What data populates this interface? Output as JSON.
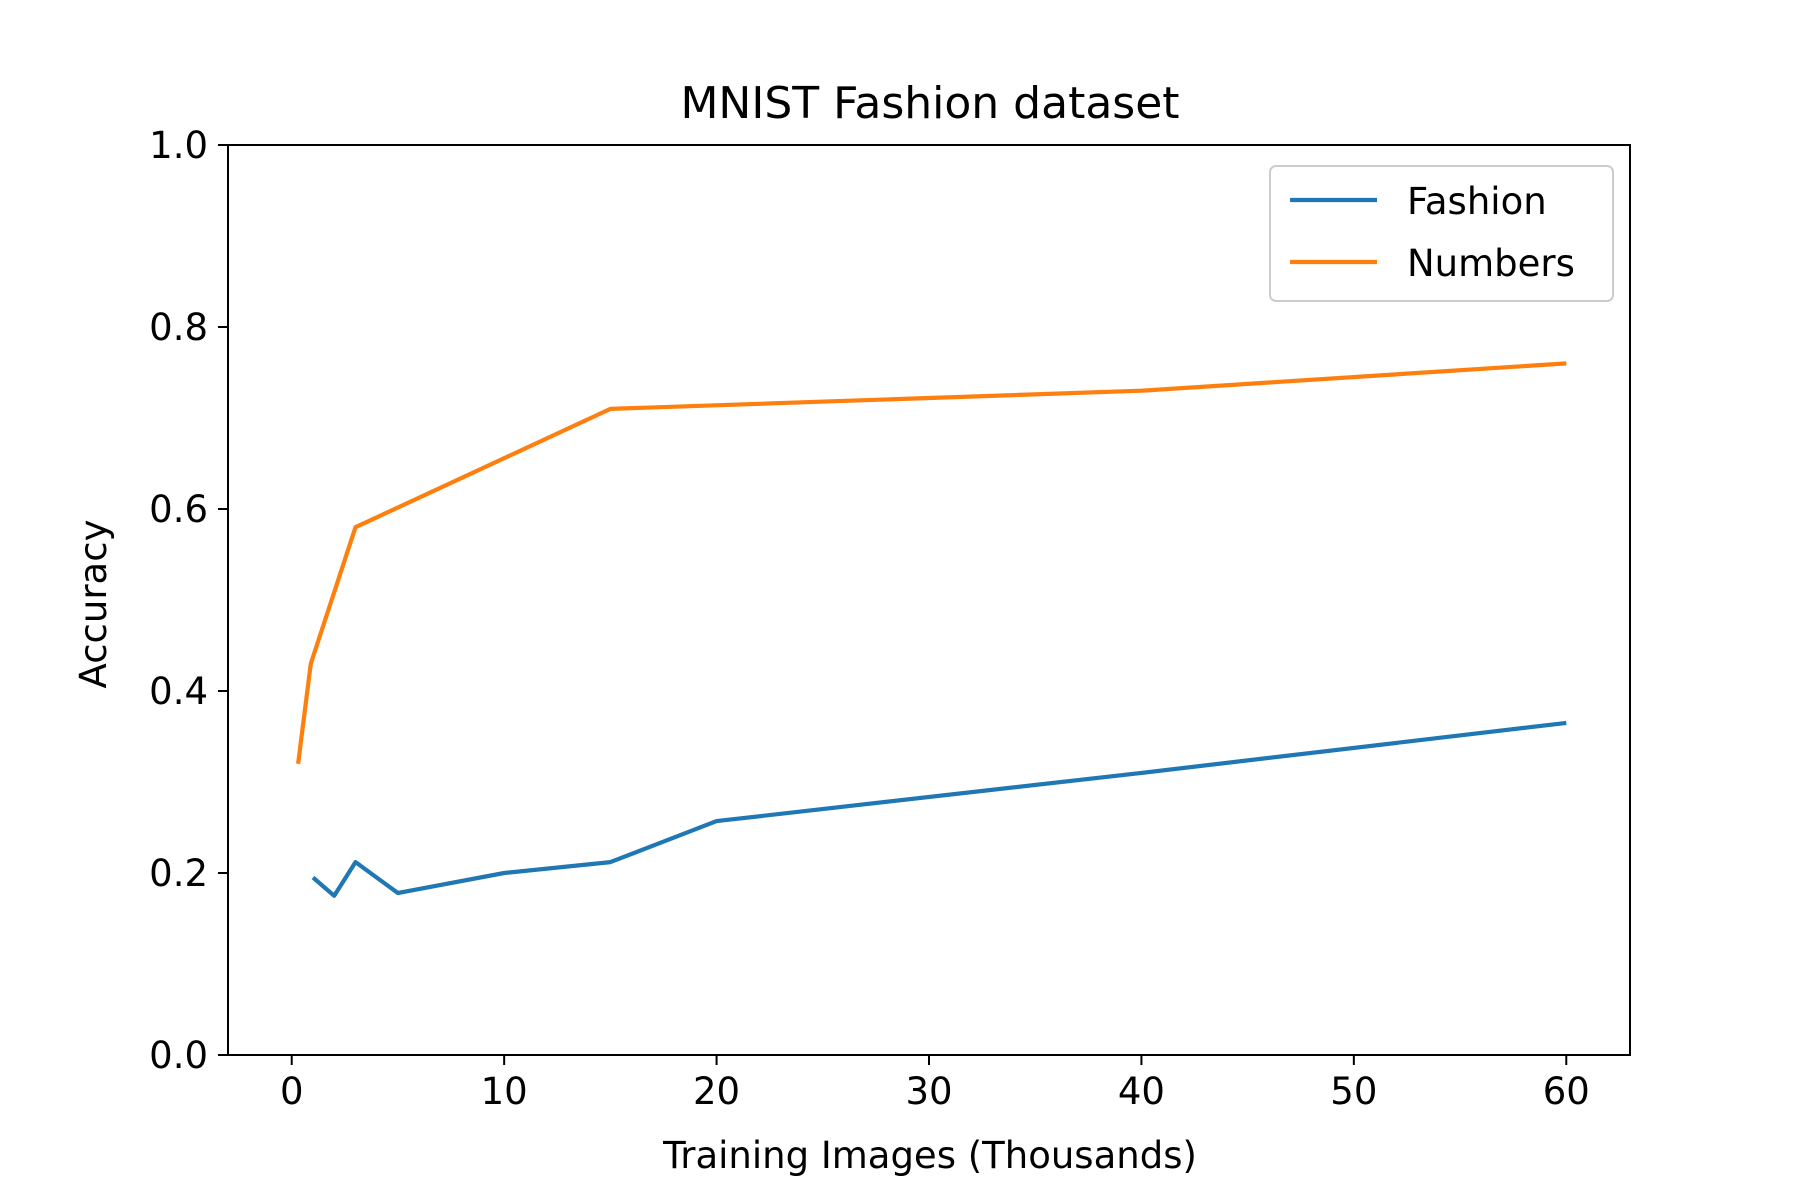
{
  "chart_data": {
    "type": "line",
    "title": "MNIST Fashion dataset",
    "xlabel": "Training Images (Thousands)",
    "ylabel": "Accuracy",
    "xlim": [
      -3,
      63
    ],
    "ylim": [
      0.0,
      1.0
    ],
    "x_ticks": [
      "0",
      "10",
      "20",
      "30",
      "40",
      "50",
      "60"
    ],
    "y_ticks": [
      "0.0",
      "0.2",
      "0.4",
      "0.6",
      "0.8",
      "1.0"
    ],
    "grid": false,
    "legend_position": "top-right",
    "series": [
      {
        "name": "Fashion",
        "color": "#1f77b4",
        "x": [
          1,
          2,
          3,
          5,
          10,
          15,
          20,
          40,
          60
        ],
        "y": [
          0.195,
          0.175,
          0.212,
          0.178,
          0.2,
          0.212,
          0.257,
          0.31,
          0.365
        ]
      },
      {
        "name": "Numbers",
        "color": "#ff7f0e",
        "x": [
          0.3,
          0.9,
          3,
          15,
          40,
          60
        ],
        "y": [
          0.32,
          0.43,
          0.58,
          0.71,
          0.73,
          0.76
        ]
      }
    ]
  }
}
